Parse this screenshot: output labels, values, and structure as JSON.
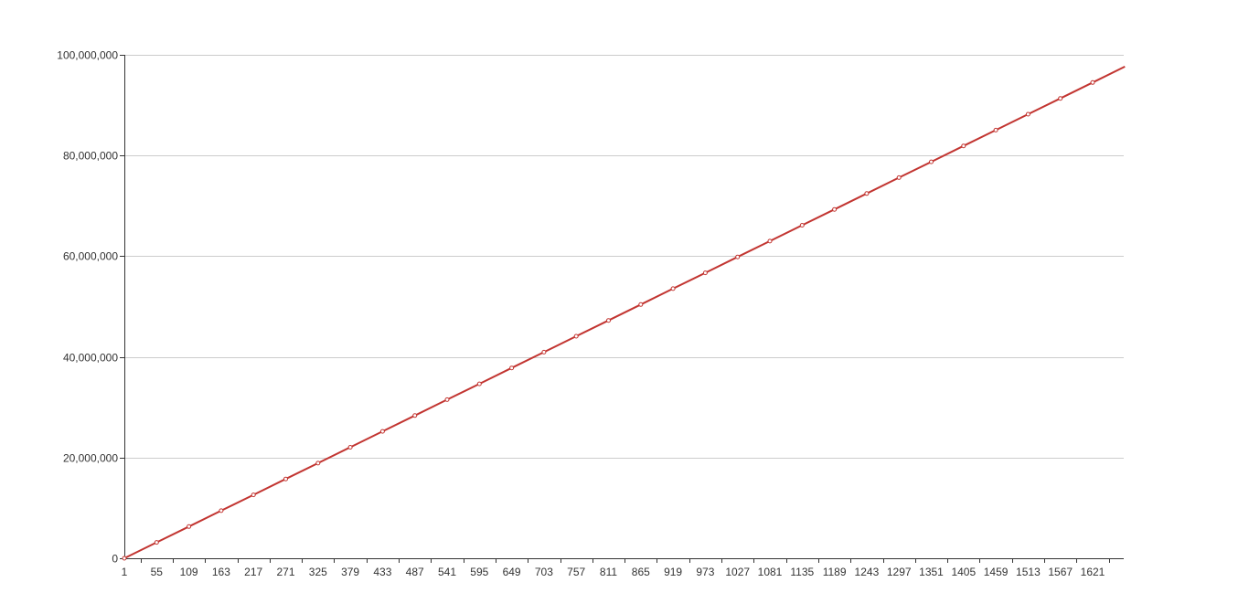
{
  "colors": {
    "series": "#c23531",
    "grid": "#cccccc",
    "axis": "#333333"
  },
  "chart_data": {
    "type": "line",
    "x": [
      1,
      55,
      109,
      163,
      217,
      271,
      325,
      379,
      433,
      487,
      541,
      595,
      649,
      703,
      757,
      811,
      865,
      919,
      973,
      1027,
      1081,
      1135,
      1189,
      1243,
      1297,
      1351,
      1405,
      1459,
      1513,
      1567,
      1621,
      1675
    ],
    "series": [
      {
        "values": [
          0,
          3150000,
          6300000,
          9450000,
          12600000,
          15750000,
          18900000,
          22050000,
          25200000,
          28350000,
          31500000,
          34650000,
          37800000,
          40950000,
          44100000,
          47250000,
          50400000,
          53550000,
          56700000,
          59850000,
          63000000,
          66150000,
          69300000,
          72450000,
          75600000,
          78750000,
          81900000,
          85050000,
          88200000,
          91350000,
          94500000,
          97650000
        ]
      }
    ],
    "x_tick_labels": [
      "1",
      "55",
      "109",
      "163",
      "217",
      "271",
      "325",
      "379",
      "433",
      "487",
      "541",
      "595",
      "649",
      "703",
      "757",
      "811",
      "865",
      "919",
      "973",
      "1027",
      "1081",
      "1135",
      "1189",
      "1243",
      "1297",
      "1351",
      "1405",
      "1459",
      "1513",
      "1567",
      "1621"
    ],
    "y_ticks": [
      0,
      20000000,
      40000000,
      60000000,
      80000000,
      100000000
    ],
    "y_tick_labels": [
      "0",
      "20,000,000",
      "40,000,000",
      "60,000,000",
      "80,000,000",
      "100,000,000"
    ],
    "ylim": [
      0,
      100000000
    ],
    "grid": true,
    "legend": "none",
    "title": "",
    "xlabel": "",
    "ylabel": ""
  }
}
